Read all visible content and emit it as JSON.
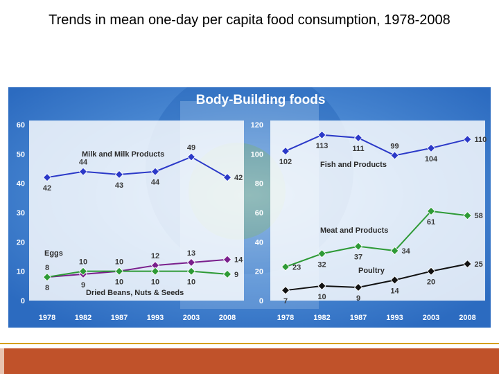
{
  "slide": {
    "title": "Trends in mean one-day per capita food consumption, 1978-2008"
  },
  "panel": {
    "heading": "Body-Building foods",
    "bg_color": "#2f74c6",
    "bg_color_light": "#5b98da",
    "heading_color": "#ffffff"
  },
  "colors": {
    "blue": "#2b39c8",
    "purple": "#7a1f8c",
    "green": "#2e9a36",
    "black": "#111111",
    "footer": "#c0522a",
    "footer_line": "#d4a017"
  },
  "chart_data": [
    {
      "type": "line",
      "categories": [
        "1978",
        "1982",
        "1987",
        "1993",
        "2003",
        "2008"
      ],
      "ylim": [
        0,
        60
      ],
      "yticks": [
        "0",
        "10",
        "20",
        "30",
        "40",
        "50",
        "60"
      ],
      "series": [
        {
          "name": "Milk and Milk Products",
          "color": "blue",
          "values": [
            42,
            44,
            43,
            44,
            49,
            42
          ],
          "labels": [
            "42",
            "44",
            "43",
            "44",
            "49",
            "42"
          ],
          "label_pos": [
            "below",
            "above",
            "below",
            "below",
            "above",
            "right"
          ]
        },
        {
          "name": "Eggs",
          "color": "purple",
          "values": [
            8,
            9,
            10,
            12,
            13,
            14
          ],
          "labels": [
            "8",
            "9",
            "10",
            "12",
            "13",
            "14"
          ],
          "label_pos": [
            "above",
            "below",
            "above",
            "above",
            "above",
            "right"
          ]
        },
        {
          "name": "Dried Beans, Nuts & Seeds",
          "color": "green",
          "values": [
            8,
            10,
            10,
            10,
            10,
            9
          ],
          "labels": [
            "8",
            "10",
            "10",
            "10",
            "10",
            "9"
          ],
          "label_pos": [
            "below",
            "above",
            "below",
            "below",
            "below",
            "right"
          ]
        }
      ]
    },
    {
      "type": "line",
      "categories": [
        "1978",
        "1982",
        "1987",
        "1993",
        "2003",
        "2008"
      ],
      "ylim": [
        0,
        120
      ],
      "yticks": [
        "0",
        "20",
        "40",
        "60",
        "80",
        "100",
        "120"
      ],
      "series": [
        {
          "name": "Fish and Products",
          "color": "blue",
          "values": [
            102,
            113,
            111,
            99,
            104,
            110
          ],
          "labels": [
            "102",
            "113",
            "111",
            "99",
            "104",
            "110"
          ],
          "label_pos": [
            "below",
            "below",
            "below",
            "above",
            "below",
            "right"
          ]
        },
        {
          "name": "Meat and Products",
          "color": "green",
          "values": [
            23,
            32,
            37,
            34,
            61,
            58
          ],
          "labels": [
            "23",
            "32",
            "37",
            "34",
            "61",
            "58"
          ],
          "label_pos": [
            "right",
            "below",
            "below",
            "right",
            "below",
            "right"
          ]
        },
        {
          "name": "Poultry",
          "color": "black",
          "values": [
            7,
            10,
            9,
            14,
            20,
            25
          ],
          "labels": [
            "7",
            "10",
            "9",
            "14",
            "20",
            "25"
          ],
          "label_pos": [
            "below",
            "below",
            "below",
            "below",
            "below",
            "right"
          ]
        }
      ]
    }
  ]
}
